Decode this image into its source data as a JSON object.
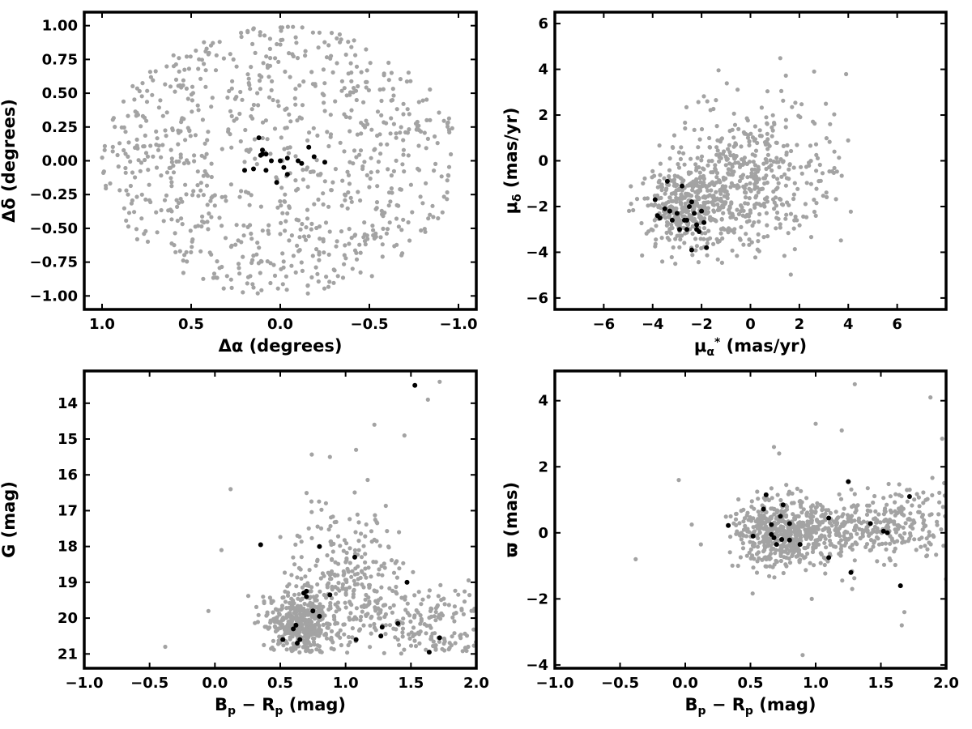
{
  "colors": {
    "field": "#a3a3a3",
    "member": "#000000",
    "axis": "#000000",
    "background": "#ffffff"
  },
  "chart_data": [
    {
      "id": "sky",
      "type": "scatter",
      "xlabel": "Δα (degrees)",
      "ylabel": "Δδ (degrees)",
      "xlim": [
        1.1,
        -1.1
      ],
      "ylim": [
        -1.1,
        1.1
      ],
      "xticks": [
        1.0,
        0.5,
        0.0,
        -0.5,
        -1.0
      ],
      "xtick_labels": [
        "1.0",
        "0.5",
        "0.0",
        "−0.5",
        "−1.0"
      ],
      "yticks": [
        -1.0,
        -0.75,
        -0.5,
        -0.25,
        0.0,
        0.25,
        0.5,
        0.75,
        1.0
      ],
      "ytick_labels": [
        "−1.00",
        "−0.75",
        "−0.50",
        "−0.25",
        "0.00",
        "0.25",
        "0.50",
        "0.75",
        "1.00"
      ],
      "series": [
        {
          "role": "field",
          "color": "#a3a3a3",
          "count": 850,
          "distribution": "uniform disk",
          "center": [
            0,
            0
          ],
          "radius": [
            1.0,
            1.0
          ]
        },
        {
          "role": "members",
          "color": "#000000",
          "x": [
            0.12,
            0.1,
            0.08,
            0.11,
            0.2,
            0.15,
            0.05,
            0.02,
            0.0,
            -0.02,
            -0.04,
            -0.04,
            -0.1,
            -0.12,
            -0.16,
            -0.19,
            -0.25,
            0.08,
            0.1
          ],
          "y": [
            0.17,
            0.08,
            0.05,
            0.04,
            -0.07,
            -0.06,
            0.0,
            -0.16,
            0.0,
            -0.05,
            -0.1,
            0.02,
            0.0,
            -0.02,
            0.1,
            0.03,
            -0.01,
            -0.07,
            0.05
          ]
        }
      ]
    },
    {
      "id": "proper-motion",
      "type": "scatter",
      "xlabel": "μα* (mas/yr)",
      "ylabel": "μδ (mas/yr)",
      "xlim": [
        -8,
        8
      ],
      "ylim": [
        -6.5,
        6.5
      ],
      "xticks": [
        -6,
        -4,
        -2,
        0,
        2,
        4,
        6
      ],
      "xtick_labels": [
        "−6",
        "−4",
        "−2",
        "0",
        "2",
        "4",
        "6"
      ],
      "yticks": [
        -6,
        -4,
        -2,
        0,
        2,
        4,
        6
      ],
      "ytick_labels": [
        "−6",
        "−4",
        "−2",
        "0",
        "2",
        "4",
        "6"
      ],
      "series": [
        {
          "role": "field",
          "color": "#a3a3a3",
          "count": 850,
          "distribution": "clumps",
          "clumps": [
            {
              "cx": -2.6,
              "cy": -2.0,
              "sx": 0.9,
              "sy": 0.9,
              "w": 0.45
            },
            {
              "cx": -0.6,
              "cy": -1.0,
              "sx": 1.1,
              "sy": 1.6,
              "w": 0.35
            },
            {
              "cx": 1.2,
              "cy": -0.5,
              "sx": 1.5,
              "sy": 1.8,
              "w": 0.2
            }
          ],
          "bounds": {
            "x": [
              -5.0,
              4.5
            ],
            "y": [
              -5.0,
              4.8
            ]
          }
        },
        {
          "role": "members",
          "color": "#000000",
          "x": [
            -3.9,
            -3.8,
            -3.7,
            -3.4,
            -3.3,
            -3.2,
            -3.0,
            -2.9,
            -2.8,
            -2.7,
            -2.6,
            -2.6,
            -2.5,
            -2.4,
            -2.3,
            -2.2,
            -2.2,
            -2.1,
            -2.0,
            -1.9,
            -1.8,
            -2.4,
            -3.5
          ],
          "y": [
            -1.7,
            -2.4,
            -2.5,
            -0.9,
            -2.2,
            -2.6,
            -2.3,
            -3.0,
            -1.1,
            -2.6,
            -2.6,
            -3.0,
            -2.0,
            -3.9,
            -2.3,
            -2.8,
            -3.0,
            -3.1,
            -2.2,
            -2.7,
            -3.8,
            -1.8,
            -2.1
          ]
        }
      ]
    },
    {
      "id": "cmd",
      "type": "scatter",
      "xlabel": "Bp − Rp (mag)",
      "ylabel": "G (mag)",
      "xlim": [
        -1.0,
        2.0
      ],
      "ylim": [
        21.4,
        13.1
      ],
      "xticks": [
        -1.0,
        -0.5,
        0.0,
        0.5,
        1.0,
        1.5,
        2.0
      ],
      "xtick_labels": [
        "−1.0",
        "−0.5",
        "0.0",
        "0.5",
        "1.0",
        "1.5",
        "2.0"
      ],
      "yticks": [
        14,
        15,
        16,
        17,
        18,
        19,
        20,
        21
      ],
      "ytick_labels": [
        "14",
        "15",
        "16",
        "17",
        "18",
        "19",
        "20",
        "21"
      ],
      "series": [
        {
          "role": "field",
          "color": "#a3a3a3",
          "count": 850,
          "distribution": "clumps",
          "clumps": [
            {
              "cx": 0.65,
              "cy": 20.2,
              "sx": 0.13,
              "sy": 0.45,
              "w": 0.5
            },
            {
              "cx": 1.0,
              "cy": 19.2,
              "sx": 0.2,
              "sy": 1.2,
              "w": 0.3
            },
            {
              "cx": 1.65,
              "cy": 20.1,
              "sx": 0.25,
              "sy": 0.6,
              "w": 0.2
            }
          ],
          "bounds": {
            "x": [
              0.25,
              2.0
            ],
            "y": [
              15.0,
              21.0
            ]
          },
          "extra_x": [
            -0.38,
            -0.05,
            0.05,
            0.12,
            1.22,
            1.45,
            1.63,
            1.72,
            0.88,
            1.08
          ],
          "extra_y": [
            20.8,
            19.8,
            18.1,
            16.4,
            14.6,
            14.9,
            13.9,
            13.4,
            15.5,
            15.3
          ]
        },
        {
          "role": "members",
          "color": "#000000",
          "x": [
            0.63,
            0.52,
            0.65,
            0.6,
            0.62,
            0.68,
            0.7,
            0.75,
            0.8,
            0.88,
            0.35,
            0.8,
            1.07,
            1.08,
            1.27,
            1.28,
            1.4,
            1.47,
            1.64,
            1.72,
            0.7,
            1.53
          ],
          "y": [
            20.7,
            20.6,
            20.6,
            20.3,
            20.2,
            19.3,
            19.4,
            19.8,
            19.95,
            19.35,
            17.95,
            18.0,
            18.3,
            20.6,
            20.5,
            20.25,
            20.15,
            19.0,
            20.95,
            20.55,
            19.25,
            13.5
          ]
        }
      ]
    },
    {
      "id": "parallax",
      "type": "scatter",
      "xlabel": "Bp − Rp (mag)",
      "ylabel": "ϖ (mas)",
      "xlim": [
        -1.0,
        2.0
      ],
      "ylim": [
        -4.1,
        4.9
      ],
      "xticks": [
        -1.0,
        -0.5,
        0.0,
        0.5,
        1.0,
        1.5,
        2.0
      ],
      "xtick_labels": [
        "−1.0",
        "−0.5",
        "0.0",
        "0.5",
        "1.0",
        "1.5",
        "2.0"
      ],
      "yticks": [
        -4,
        -2,
        0,
        2,
        4
      ],
      "ytick_labels": [
        "−4",
        "−2",
        "0",
        "2",
        "4"
      ],
      "series": [
        {
          "role": "field",
          "color": "#a3a3a3",
          "count": 850,
          "distribution": "clumps",
          "clumps": [
            {
              "cx": 0.7,
              "cy": 0.0,
              "sx": 0.17,
              "sy": 0.55,
              "w": 0.45
            },
            {
              "cx": 1.0,
              "cy": 0.0,
              "sx": 0.22,
              "sy": 0.4,
              "w": 0.3
            },
            {
              "cx": 1.6,
              "cy": 0.3,
              "sx": 0.25,
              "sy": 0.55,
              "w": 0.25
            }
          ],
          "bounds": {
            "x": [
              0.3,
              2.0
            ],
            "y": [
              -2.0,
              2.0
            ]
          },
          "extra_x": [
            -0.38,
            -0.05,
            0.05,
            0.12,
            0.68,
            0.72,
            0.9,
            0.97,
            1.0,
            1.2,
            1.28,
            1.3,
            1.66,
            1.68,
            1.88,
            1.97,
            2.0
          ],
          "extra_y": [
            -0.8,
            1.6,
            0.25,
            -0.35,
            2.6,
            2.4,
            -3.7,
            -2.0,
            3.3,
            3.1,
            -1.7,
            4.5,
            -2.8,
            -2.4,
            4.1,
            2.85,
            -1.4
          ]
        },
        {
          "role": "members",
          "color": "#000000",
          "x": [
            0.33,
            0.52,
            0.6,
            0.62,
            0.66,
            0.68,
            0.7,
            0.73,
            0.75,
            0.8,
            0.8,
            0.88,
            1.1,
            1.1,
            1.25,
            1.27,
            1.42,
            1.52,
            1.55,
            1.65,
            1.72,
            0.74,
            0.66
          ],
          "y": [
            0.22,
            -0.1,
            0.72,
            1.15,
            0.25,
            -0.15,
            -0.35,
            0.5,
            0.85,
            0.28,
            -0.22,
            -0.35,
            0.45,
            -0.75,
            1.55,
            -1.2,
            0.28,
            0.05,
            0.0,
            -1.6,
            1.1,
            -0.2,
            -0.05
          ]
        }
      ]
    }
  ]
}
